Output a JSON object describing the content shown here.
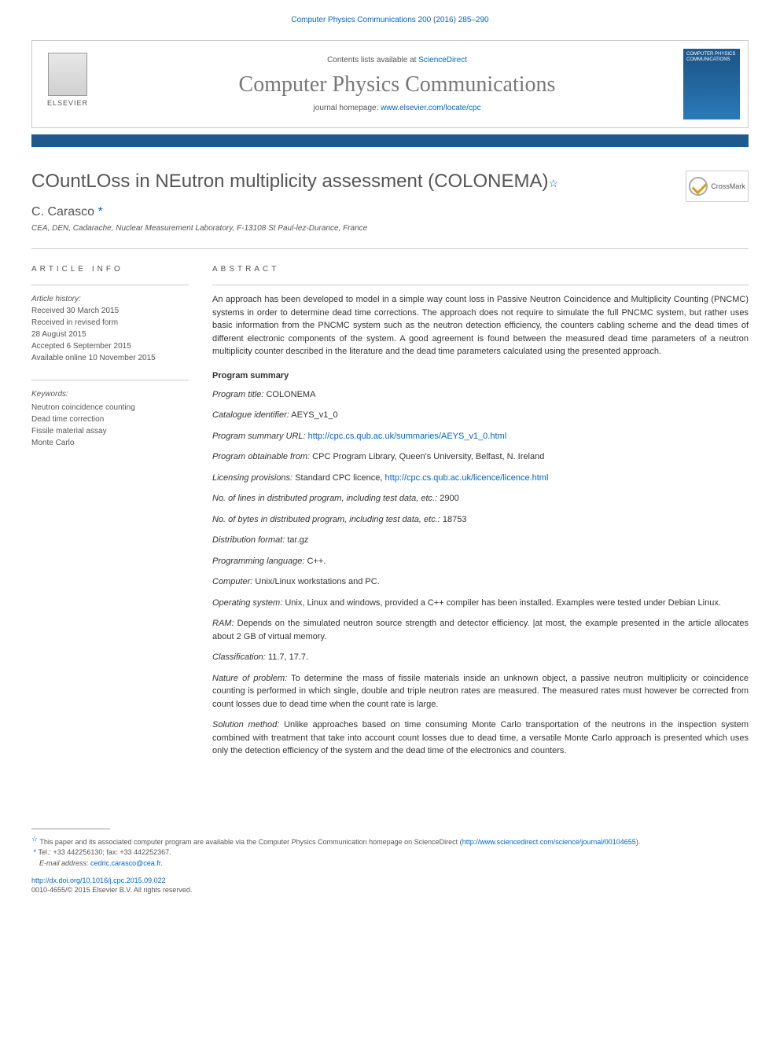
{
  "citation": "Computer Physics Communications 200 (2016) 285–290",
  "header": {
    "contents_prefix": "Contents lists available at ",
    "contents_link": "ScienceDirect",
    "journal_name": "Computer Physics Communications",
    "homepage_prefix": "journal homepage: ",
    "homepage_link": "www.elsevier.com/locate/cpc",
    "publisher": "ELSEVIER",
    "cover_text": "COMPUTER PHYSICS COMMUNICATIONS"
  },
  "article": {
    "title": "COuntLOss in NEutron multiplicity assessment (COLONEMA)",
    "crossmark": "CrossMark",
    "authors": "C. Carasco",
    "affiliation": "CEA, DEN, Cadarache, Nuclear Measurement Laboratory, F-13108 St Paul-lez-Durance, France"
  },
  "article_info": {
    "heading": "ARTICLE INFO",
    "history_label": "Article history:",
    "history": [
      "Received 30 March 2015",
      "Received in revised form",
      "28 August 2015",
      "Accepted 6 September 2015",
      "Available online 10 November 2015"
    ],
    "keywords_label": "Keywords:",
    "keywords": [
      "Neutron coincidence counting",
      "Dead time correction",
      "Fissile material assay",
      "Monte Carlo"
    ]
  },
  "abstract": {
    "heading": "ABSTRACT",
    "text": "An approach has been developed to model in a simple way count loss in Passive Neutron Coincidence and Multiplicity Counting (PNCMC) systems in order to determine dead time corrections. The approach does not require to simulate the full PNCMC system, but rather uses basic information from the PNCMC system such as the neutron detection efficiency, the counters cabling scheme and the dead times of different electronic components of the system. A good agreement is found between the measured dead time parameters of a neutron multiplicity counter described in the literature and the dead time parameters calculated using the presented approach."
  },
  "program": {
    "heading": "Program summary",
    "items": [
      {
        "label": "Program title:",
        "value": " COLONEMA"
      },
      {
        "label": "Catalogue identifier:",
        "value": " AEYS_v1_0"
      },
      {
        "label": "Program summary URL:",
        "link": "http://cpc.cs.qub.ac.uk/summaries/AEYS_v1_0.html"
      },
      {
        "label": "Program obtainable from:",
        "value": " CPC Program Library, Queen's University, Belfast, N. Ireland"
      },
      {
        "label": "Licensing provisions:",
        "value": " Standard CPC licence, ",
        "link": "http://cpc.cs.qub.ac.uk/licence/licence.html"
      },
      {
        "label": "No. of lines in distributed program, including test data, etc.:",
        "value": " 2900"
      },
      {
        "label": "No. of bytes in distributed program, including test data, etc.:",
        "value": " 18753"
      },
      {
        "label": "Distribution format:",
        "value": " tar.gz"
      },
      {
        "label": "Programming language:",
        "value": " C++."
      },
      {
        "label": "Computer:",
        "value": " Unix/Linux workstations and PC."
      },
      {
        "label": "Operating system:",
        "value": " Unix, Linux and windows, provided a C++ compiler has been installed. Examples were tested under Debian Linux."
      },
      {
        "label": "RAM:",
        "value": " Depends on the simulated neutron source strength and detector efficiency. |at most, the example presented in the article allocates about 2 GB of virtual memory."
      },
      {
        "label": "Classification:",
        "value": " 11.7, 17.7."
      },
      {
        "label": "Nature of problem:",
        "value": " To determine the mass of fissile materials inside an unknown object, a passive neutron multiplicity or coincidence counting is performed in which single, double and triple neutron rates are measured. The measured rates must however be corrected from count losses due to dead time when the count rate is large."
      },
      {
        "label": "Solution method:",
        "value": " Unlike approaches based on time consuming Monte Carlo transportation of the neutrons in the inspection system combined with treatment that take into account count losses due to dead time, a versatile Monte Carlo approach is presented which uses only the detection efficiency of the system and the dead time of the electronics and counters."
      }
    ]
  },
  "footnotes": {
    "note1_prefix": "This paper and its associated computer program are available via the Computer Physics Communication homepage on ScienceDirect   (",
    "note1_link": "http://www.sciencedirect.com/science/journal/00104655",
    "note1_suffix": ").",
    "note2": "Tel.: +33 442256130; fax: +33 442252367.",
    "email_label": "E-mail address: ",
    "email": "cedric.carasco@cea.fr",
    "doi": "http://dx.doi.org/10.1016/j.cpc.2015.09.022",
    "copyright": "0010-4655/© 2015 Elsevier B.V. All rights reserved."
  },
  "colors": {
    "link": "#0066cc",
    "bar": "#1e5a8e",
    "text": "#555555"
  }
}
